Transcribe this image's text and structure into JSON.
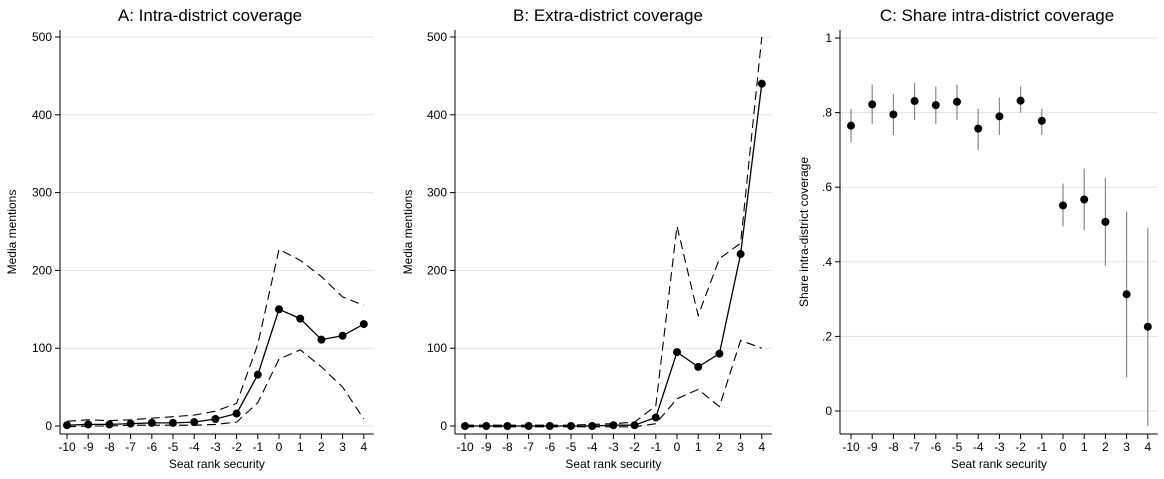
{
  "chart_data": [
    {
      "type": "line",
      "title": "A: Intra-district coverage",
      "xlabel": "Seat rank security",
      "ylabel": "Media mentions",
      "x": [
        -10,
        -9,
        -8,
        -7,
        -6,
        -5,
        -4,
        -3,
        -2,
        -1,
        0,
        1,
        2,
        3,
        4
      ],
      "xtick_labels": [
        "-10",
        "-9",
        "-8",
        "-7",
        "-6",
        "-5",
        "-4",
        "-3",
        "-2",
        "-1",
        "0",
        "1",
        "2",
        "3",
        "4"
      ],
      "ylim": [
        0,
        500
      ],
      "yticks": [
        0,
        100,
        200,
        300,
        400,
        500
      ],
      "ytick_labels": [
        "0",
        "100",
        "200",
        "300",
        "400",
        "500"
      ],
      "grid": true,
      "series": [
        {
          "style": "solid-with-markers",
          "values": [
            1,
            2,
            2,
            3,
            4,
            4,
            5,
            9,
            16,
            66,
            150,
            138,
            111,
            116,
            131
          ]
        },
        {
          "style": "dashed-upper",
          "values": [
            6,
            8,
            7,
            8,
            10,
            12,
            14,
            19,
            29,
            105,
            227,
            213,
            192,
            166,
            155
          ]
        },
        {
          "style": "dashed-lower",
          "values": [
            -1,
            0,
            0,
            1,
            1,
            1,
            1,
            2,
            5,
            30,
            86,
            98,
            76,
            50,
            9
          ]
        }
      ]
    },
    {
      "type": "line",
      "title": "B: Extra-district coverage",
      "xlabel": "Seat rank security",
      "ylabel": "Media mentions",
      "x": [
        -10,
        -9,
        -8,
        -7,
        -6,
        -5,
        -4,
        -3,
        -2,
        -1,
        0,
        1,
        2,
        3,
        4
      ],
      "xtick_labels": [
        "-10",
        "-9",
        "-8",
        "-7",
        "-6",
        "-5",
        "-4",
        "-3",
        "-2",
        "-1",
        "0",
        "1",
        "2",
        "3",
        "4"
      ],
      "ylim": [
        0,
        500
      ],
      "yticks": [
        0,
        100,
        200,
        300,
        400,
        500
      ],
      "ytick_labels": [
        "0",
        "100",
        "200",
        "300",
        "400",
        "500"
      ],
      "grid": true,
      "series": [
        {
          "style": "solid-with-markers",
          "values": [
            0,
            0,
            0,
            0,
            0,
            0,
            0,
            1,
            1,
            11,
            95,
            76,
            93,
            221,
            440
          ]
        },
        {
          "style": "dashed-upper",
          "values": [
            1,
            1,
            1,
            1,
            1,
            1,
            2,
            3,
            5,
            26,
            257,
            142,
            215,
            235,
            500
          ]
        },
        {
          "style": "dashed-lower",
          "values": [
            -1,
            -1,
            -1,
            -1,
            -1,
            -1,
            -1,
            -1,
            -1,
            3,
            35,
            47,
            25,
            110,
            100
          ]
        }
      ]
    },
    {
      "type": "scatter",
      "title": "C: Share intra-district coverage",
      "xlabel": "Seat rank security",
      "ylabel": "Share intra-district coverage",
      "x": [
        -10,
        -9,
        -8,
        -7,
        -6,
        -5,
        -4,
        -3,
        -2,
        -1,
        0,
        1,
        2,
        3,
        4
      ],
      "xtick_labels": [
        "-10",
        "-9",
        "-8",
        "-7",
        "-6",
        "-5",
        "-4",
        "-3",
        "-2",
        "-1",
        "0",
        "1",
        "2",
        "3",
        "4"
      ],
      "ylim": [
        0,
        1
      ],
      "yticks": [
        0,
        0.2,
        0.4,
        0.6,
        0.8,
        1
      ],
      "ytick_labels": [
        "0",
        ".2",
        ".4",
        ".6",
        ".8",
        "1"
      ],
      "grid": true,
      "values": [
        0.765,
        0.822,
        0.795,
        0.831,
        0.82,
        0.829,
        0.757,
        0.79,
        0.832,
        0.778,
        0.551,
        0.567,
        0.507,
        0.313,
        0.226
      ],
      "ci_lower": [
        0.72,
        0.77,
        0.74,
        0.78,
        0.77,
        0.78,
        0.7,
        0.74,
        0.8,
        0.74,
        0.495,
        0.485,
        0.39,
        0.09,
        -0.04
      ],
      "ci_upper": [
        0.81,
        0.875,
        0.85,
        0.88,
        0.87,
        0.875,
        0.81,
        0.84,
        0.87,
        0.81,
        0.61,
        0.65,
        0.625,
        0.535,
        0.49
      ]
    }
  ]
}
